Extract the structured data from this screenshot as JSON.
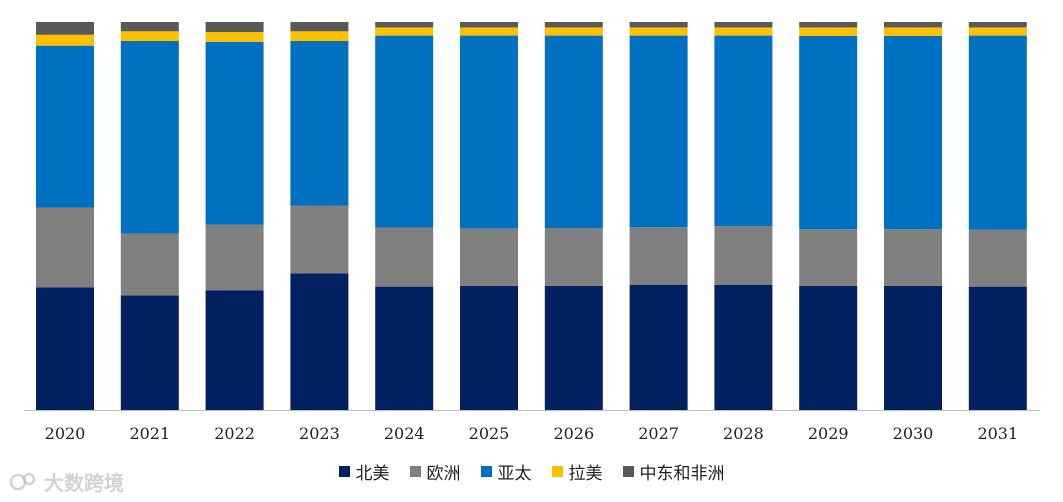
{
  "chart_data": {
    "type": "bar",
    "stacked": true,
    "percent": true,
    "categories": [
      "2020",
      "2021",
      "2022",
      "2023",
      "2024",
      "2025",
      "2026",
      "2027",
      "2028",
      "2029",
      "2030",
      "2031"
    ],
    "series": [
      {
        "name": "北美",
        "color": "#002060",
        "values": [
          31.6,
          29.5,
          30.8,
          35.2,
          31.8,
          32.0,
          32.0,
          32.3,
          32.3,
          32.0,
          32.0,
          31.8
        ]
      },
      {
        "name": "欧洲",
        "color": "#808080",
        "values": [
          20.6,
          16.0,
          17.0,
          17.5,
          15.2,
          14.8,
          14.9,
          14.8,
          15.1,
          14.6,
          14.6,
          14.7
        ]
      },
      {
        "name": "亚太",
        "color": "#0070C0",
        "values": [
          41.7,
          49.6,
          47.1,
          42.4,
          49.5,
          49.7,
          49.6,
          49.4,
          49.1,
          49.8,
          49.8,
          50.0
        ]
      },
      {
        "name": "拉美",
        "color": "#FFC000",
        "values": [
          2.8,
          2.5,
          2.5,
          2.5,
          2.1,
          2.1,
          2.1,
          2.1,
          2.1,
          2.2,
          2.2,
          2.1
        ]
      },
      {
        "name": "中东和非洲",
        "color": "#595959",
        "values": [
          3.3,
          2.4,
          2.6,
          2.4,
          1.4,
          1.4,
          1.4,
          1.4,
          1.4,
          1.4,
          1.4,
          1.4
        ]
      }
    ],
    "legend_position": "bottom",
    "grid": false
  },
  "watermark": {
    "text": "大数跨境"
  }
}
